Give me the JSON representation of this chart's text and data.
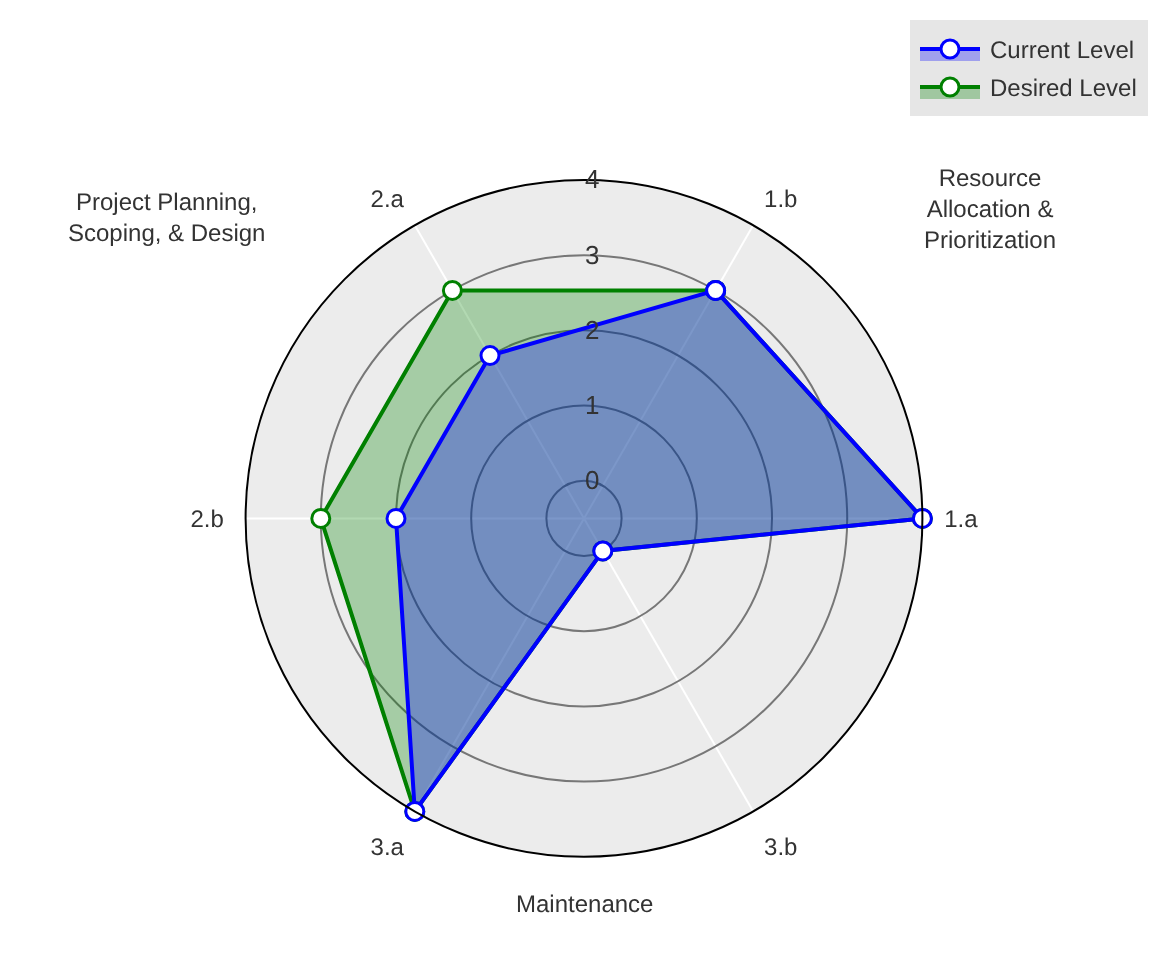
{
  "chart_data": {
    "type": "radar",
    "categories": [
      "1.b",
      "1.a",
      "3.b",
      "3.a",
      "2.b",
      "2.a"
    ],
    "series": [
      {
        "name": "Current Level",
        "color": "#0000ff",
        "values": [
          3,
          4,
          0,
          4,
          2,
          2
        ]
      },
      {
        "name": "Desired Level",
        "color": "#008000",
        "values": [
          3,
          4,
          0,
          4,
          3,
          3
        ]
      }
    ],
    "ylim": [
      -0.5,
      4
    ],
    "yticks": [
      0,
      1,
      2,
      3,
      4
    ],
    "annotations": [
      "Resource\nAllocation &\nPrioritization",
      "Project Planning,\nScoping, & Design",
      "Maintenance"
    ],
    "legend": "top right",
    "marker": "circle",
    "grid": true
  }
}
